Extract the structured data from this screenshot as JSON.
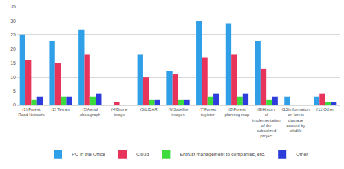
{
  "chart_data": {
    "type": "bar",
    "categories": [
      "(1) Forest Road Network",
      "(2) Terrain",
      "(3)Aerial photograph",
      "(4)Drone image",
      "(5)LIDAR",
      "(6)Satellite images",
      "(7)Forest register",
      "(8)Forest planning map",
      "(9)History of implementation of the subsidized project",
      "(10)Information on forest damage caused by wildlife",
      "(11)Other"
    ],
    "series": [
      {
        "name": "PC in the Office",
        "color": "#2f9fe8",
        "values": [
          25,
          23,
          27,
          0,
          18,
          12,
          30,
          29,
          23,
          3,
          3
        ]
      },
      {
        "name": "Cloud",
        "color": "#e8345a",
        "values": [
          16,
          15,
          18,
          1,
          10,
          11,
          17,
          18,
          13,
          0,
          4
        ]
      },
      {
        "name": "Entrust management to companies, etc.",
        "color": "#3ddc3d",
        "values": [
          2,
          3,
          3,
          0,
          2,
          2,
          3,
          3,
          2,
          0,
          1
        ]
      },
      {
        "name": "Other",
        "color": "#2c3ddb",
        "values": [
          3,
          3,
          4,
          0,
          2,
          2,
          4,
          4,
          3,
          0,
          1
        ]
      }
    ],
    "ylim": [
      0,
      35
    ],
    "yticks": [
      0,
      5,
      10,
      15,
      20,
      25,
      30,
      35
    ],
    "grid": true,
    "legend": "bottom"
  }
}
